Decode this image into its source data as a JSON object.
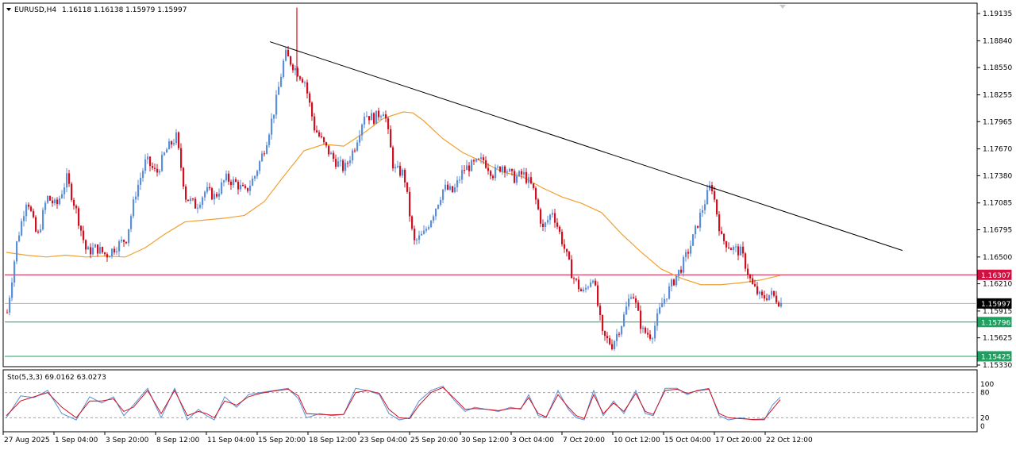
{
  "header": {
    "symbol": "EURUSD,H4",
    "ohlc": "1.16118 1.16138 1.15979 1.15997"
  },
  "indicator": {
    "label": "Sto(5,3,3) 69.0162 63.0273",
    "levels": [
      "100",
      "80",
      "20",
      "0"
    ]
  },
  "colors": {
    "bull": "#5b8fd8",
    "bear": "#d01020",
    "ma": "#f0a030",
    "trendline": "#000000",
    "resistance": "#d01040",
    "support": "#20a060",
    "stoch_main": "#5b8fd8",
    "stoch_signal": "#d01020"
  },
  "chart_data": [
    {
      "type": "candlestick",
      "symbol": "EURUSD",
      "timeframe": "H4",
      "ylim": [
        1.1533,
        1.1923
      ],
      "y_ticks": [
        "1.19135",
        "1.18840",
        "1.18550",
        "1.18255",
        "1.17965",
        "1.17670",
        "1.17380",
        "1.17085",
        "1.16795",
        "1.16500",
        "1.16210",
        "1.15915",
        "1.15625",
        "1.15330"
      ],
      "x_ticks": [
        "27 Aug 2025",
        "1 Sep 04:00",
        "3 Sep 20:00",
        "8 Sep 12:00",
        "11 Sep 04:00",
        "15 Sep 20:00",
        "18 Sep 12:00",
        "23 Sep 04:00",
        "25 Sep 20:00",
        "30 Sep 12:00",
        "3 Oct 04:00",
        "7 Oct 20:00",
        "10 Oct 12:00",
        "15 Oct 04:00",
        "17 Oct 20:00",
        "22 Oct 12:00"
      ],
      "close_path": [
        [
          0,
          1.159
        ],
        [
          12,
          1.1665
        ],
        [
          25,
          1.1715
        ],
        [
          38,
          1.167
        ],
        [
          50,
          1.1715
        ],
        [
          62,
          1.1705
        ],
        [
          75,
          1.1735
        ],
        [
          87,
          1.17
        ],
        [
          100,
          1.1655
        ],
        [
          112,
          1.166
        ],
        [
          125,
          1.1652
        ],
        [
          138,
          1.1662
        ],
        [
          150,
          1.167
        ],
        [
          162,
          1.172
        ],
        [
          175,
          1.1755
        ],
        [
          188,
          1.174
        ],
        [
          200,
          1.1765
        ],
        [
          213,
          1.178
        ],
        [
          225,
          1.1715
        ],
        [
          238,
          1.1705
        ],
        [
          250,
          1.1722
        ],
        [
          262,
          1.1715
        ],
        [
          275,
          1.1735
        ],
        [
          288,
          1.173
        ],
        [
          300,
          1.172
        ],
        [
          312,
          1.1738
        ],
        [
          325,
          1.177
        ],
        [
          338,
          1.1815
        ],
        [
          350,
          1.187
        ],
        [
          362,
          1.1855
        ],
        [
          375,
          1.184
        ],
        [
          387,
          1.179
        ],
        [
          400,
          1.177
        ],
        [
          412,
          1.1755
        ],
        [
          425,
          1.1745
        ],
        [
          438,
          1.177
        ],
        [
          450,
          1.1805
        ],
        [
          462,
          1.18
        ],
        [
          475,
          1.181
        ],
        [
          487,
          1.1745
        ],
        [
          500,
          1.174
        ],
        [
          512,
          1.1665
        ],
        [
          525,
          1.1675
        ],
        [
          538,
          1.17
        ],
        [
          550,
          1.1725
        ],
        [
          562,
          1.172
        ],
        [
          575,
          1.1745
        ],
        [
          588,
          1.175
        ],
        [
          600,
          1.1755
        ],
        [
          612,
          1.174
        ],
        [
          625,
          1.175
        ],
        [
          638,
          1.1735
        ],
        [
          650,
          1.174
        ],
        [
          662,
          1.1725
        ],
        [
          675,
          1.168
        ],
        [
          687,
          1.17
        ],
        [
          700,
          1.1665
        ],
        [
          712,
          1.163
        ],
        [
          725,
          1.161
        ],
        [
          738,
          1.163
        ],
        [
          750,
          1.1565
        ],
        [
          762,
          1.1555
        ],
        [
          775,
          1.158
        ],
        [
          787,
          1.1615
        ],
        [
          800,
          1.157
        ],
        [
          812,
          1.1565
        ],
        [
          825,
          1.16
        ],
        [
          837,
          1.162
        ],
        [
          850,
          1.164
        ],
        [
          862,
          1.1665
        ],
        [
          875,
          1.17
        ],
        [
          887,
          1.173
        ],
        [
          900,
          1.167
        ],
        [
          912,
          1.166
        ],
        [
          925,
          1.1655
        ],
        [
          938,
          1.162
        ],
        [
          950,
          1.1605
        ],
        [
          962,
          1.161
        ],
        [
          975,
          1.16
        ]
      ],
      "moving_average": [
        [
          0,
          1.1655
        ],
        [
          25,
          1.1652
        ],
        [
          50,
          1.165
        ],
        [
          75,
          1.1652
        ],
        [
          100,
          1.165
        ],
        [
          125,
          1.1651
        ],
        [
          150,
          1.165
        ],
        [
          175,
          1.166
        ],
        [
          200,
          1.1675
        ],
        [
          225,
          1.1688
        ],
        [
          250,
          1.169
        ],
        [
          275,
          1.1692
        ],
        [
          300,
          1.1695
        ],
        [
          325,
          1.171
        ],
        [
          350,
          1.1738
        ],
        [
          375,
          1.1765
        ],
        [
          400,
          1.1772
        ],
        [
          425,
          1.177
        ],
        [
          450,
          1.1784
        ],
        [
          475,
          1.18
        ],
        [
          500,
          1.1807
        ],
        [
          512,
          1.1806
        ],
        [
          525,
          1.1798
        ],
        [
          550,
          1.1778
        ],
        [
          575,
          1.1763
        ],
        [
          600,
          1.1753
        ],
        [
          625,
          1.1742
        ],
        [
          650,
          1.1737
        ],
        [
          675,
          1.1725
        ],
        [
          700,
          1.1715
        ],
        [
          725,
          1.1708
        ],
        [
          750,
          1.1698
        ],
        [
          775,
          1.1675
        ],
        [
          800,
          1.1655
        ],
        [
          825,
          1.1637
        ],
        [
          850,
          1.1627
        ],
        [
          875,
          1.162
        ],
        [
          900,
          1.162
        ],
        [
          925,
          1.1622
        ],
        [
          950,
          1.1625
        ],
        [
          975,
          1.163
        ]
      ],
      "trendline": [
        [
          340,
          1.1883
        ],
        [
          1137,
          1.1657
        ]
      ],
      "levels": [
        {
          "label": "1.16307",
          "value": 1.16307,
          "kind": "resistance"
        },
        {
          "label": "1.15997",
          "value": 1.15997,
          "kind": "current"
        },
        {
          "label": "1.15796",
          "value": 1.15796,
          "kind": "support"
        },
        {
          "label": "1.15425",
          "value": 1.15425,
          "kind": "support"
        }
      ]
    },
    {
      "type": "line",
      "name": "Sto(5,3,3)",
      "ylim": [
        0,
        100
      ],
      "main_line": [
        [
          0,
          20
        ],
        [
          18,
          72
        ],
        [
          35,
          68
        ],
        [
          52,
          85
        ],
        [
          70,
          30
        ],
        [
          88,
          15
        ],
        [
          105,
          70
        ],
        [
          120,
          55
        ],
        [
          135,
          70
        ],
        [
          148,
          25
        ],
        [
          160,
          50
        ],
        [
          178,
          90
        ],
        [
          195,
          20
        ],
        [
          212,
          90
        ],
        [
          228,
          15
        ],
        [
          242,
          40
        ],
        [
          252,
          25
        ],
        [
          262,
          15
        ],
        [
          275,
          70
        ],
        [
          290,
          45
        ],
        [
          305,
          75
        ],
        [
          320,
          80
        ],
        [
          338,
          85
        ],
        [
          355,
          90
        ],
        [
          368,
          65
        ],
        [
          378,
          20
        ],
        [
          395,
          30
        ],
        [
          410,
          25
        ],
        [
          425,
          28
        ],
        [
          440,
          90
        ],
        [
          455,
          85
        ],
        [
          470,
          75
        ],
        [
          482,
          30
        ],
        [
          495,
          15
        ],
        [
          508,
          20
        ],
        [
          520,
          60
        ],
        [
          535,
          85
        ],
        [
          550,
          95
        ],
        [
          565,
          60
        ],
        [
          578,
          35
        ],
        [
          590,
          45
        ],
        [
          605,
          40
        ],
        [
          620,
          35
        ],
        [
          635,
          45
        ],
        [
          648,
          40
        ],
        [
          658,
          75
        ],
        [
          670,
          25
        ],
        [
          680,
          20
        ],
        [
          695,
          85
        ],
        [
          708,
          40
        ],
        [
          718,
          20
        ],
        [
          728,
          15
        ],
        [
          740,
          85
        ],
        [
          752,
          25
        ],
        [
          765,
          60
        ],
        [
          778,
          30
        ],
        [
          793,
          85
        ],
        [
          805,
          30
        ],
        [
          815,
          25
        ],
        [
          830,
          90
        ],
        [
          845,
          90
        ],
        [
          858,
          75
        ],
        [
          870,
          85
        ],
        [
          885,
          90
        ],
        [
          898,
          25
        ],
        [
          910,
          15
        ],
        [
          925,
          20
        ],
        [
          940,
          15
        ],
        [
          955,
          15
        ],
        [
          965,
          50
        ],
        [
          975,
          69
        ]
      ],
      "signal_line": [
        [
          0,
          25
        ],
        [
          18,
          60
        ],
        [
          35,
          70
        ],
        [
          52,
          80
        ],
        [
          70,
          45
        ],
        [
          88,
          20
        ],
        [
          105,
          60
        ],
        [
          120,
          60
        ],
        [
          135,
          65
        ],
        [
          148,
          35
        ],
        [
          160,
          45
        ],
        [
          178,
          85
        ],
        [
          195,
          30
        ],
        [
          212,
          85
        ],
        [
          228,
          25
        ],
        [
          242,
          35
        ],
        [
          252,
          30
        ],
        [
          262,
          20
        ],
        [
          275,
          60
        ],
        [
          290,
          50
        ],
        [
          305,
          70
        ],
        [
          320,
          78
        ],
        [
          338,
          84
        ],
        [
          355,
          88
        ],
        [
          368,
          72
        ],
        [
          378,
          30
        ],
        [
          395,
          28
        ],
        [
          410,
          27
        ],
        [
          425,
          28
        ],
        [
          440,
          80
        ],
        [
          455,
          85
        ],
        [
          470,
          78
        ],
        [
          482,
          40
        ],
        [
          495,
          20
        ],
        [
          508,
          18
        ],
        [
          520,
          50
        ],
        [
          535,
          80
        ],
        [
          550,
          92
        ],
        [
          565,
          65
        ],
        [
          578,
          40
        ],
        [
          590,
          42
        ],
        [
          605,
          40
        ],
        [
          620,
          37
        ],
        [
          635,
          42
        ],
        [
          648,
          42
        ],
        [
          658,
          68
        ],
        [
          670,
          30
        ],
        [
          680,
          22
        ],
        [
          695,
          75
        ],
        [
          708,
          45
        ],
        [
          718,
          25
        ],
        [
          728,
          18
        ],
        [
          740,
          75
        ],
        [
          752,
          30
        ],
        [
          765,
          55
        ],
        [
          778,
          35
        ],
        [
          793,
          78
        ],
        [
          805,
          35
        ],
        [
          815,
          28
        ],
        [
          830,
          85
        ],
        [
          845,
          88
        ],
        [
          858,
          78
        ],
        [
          870,
          84
        ],
        [
          885,
          88
        ],
        [
          898,
          30
        ],
        [
          910,
          20
        ],
        [
          925,
          18
        ],
        [
          940,
          16
        ],
        [
          955,
          17
        ],
        [
          965,
          40
        ],
        [
          975,
          63
        ]
      ],
      "levels": [
        100,
        80,
        20,
        0
      ]
    }
  ]
}
